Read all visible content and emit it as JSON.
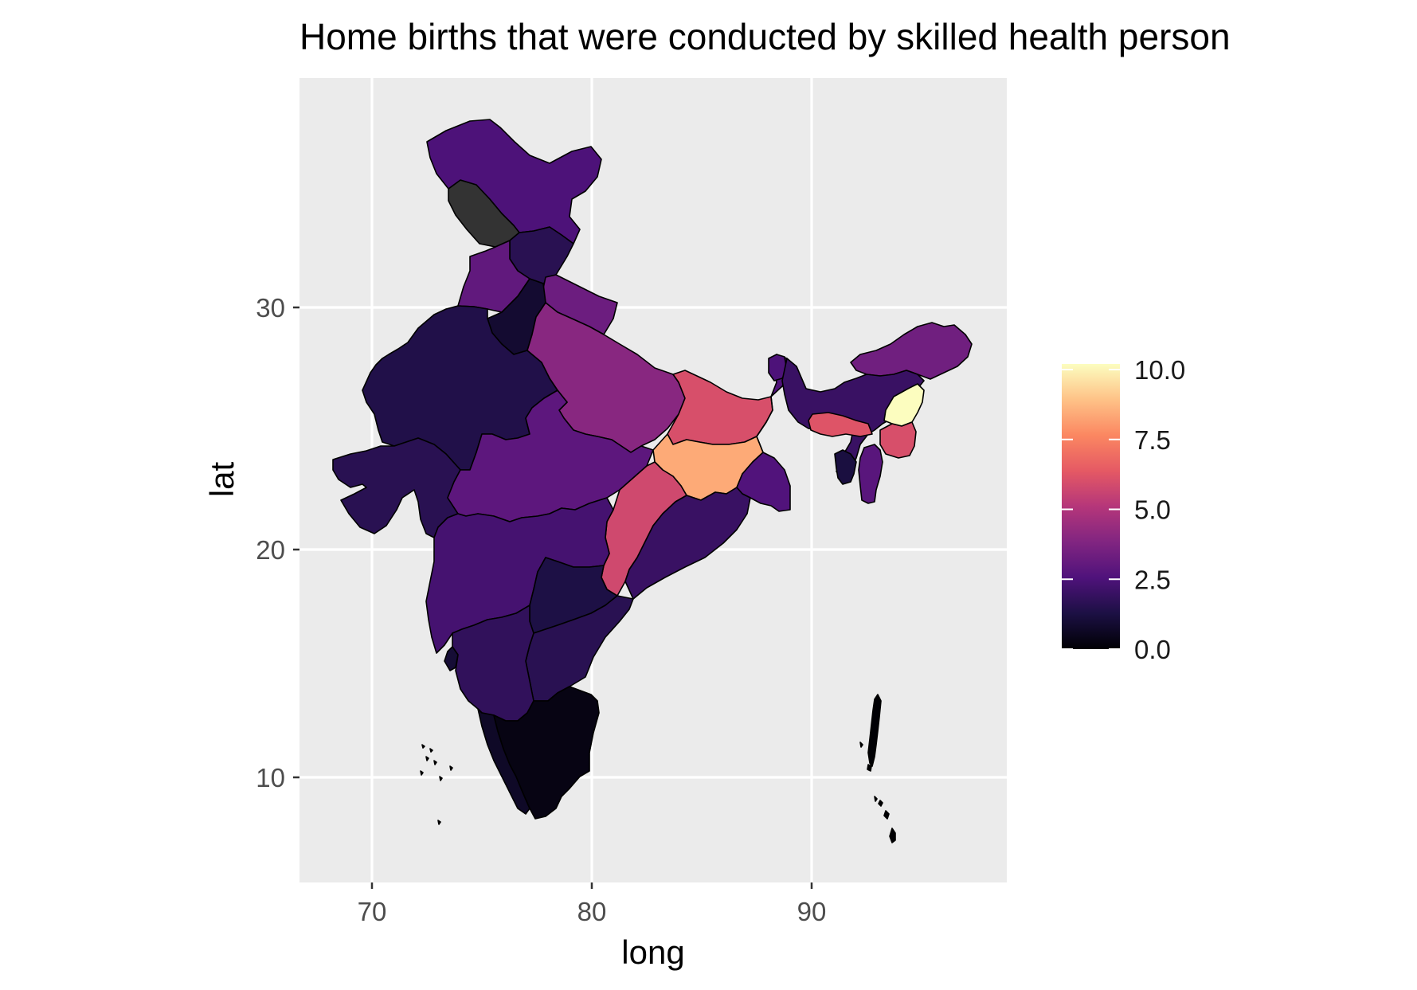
{
  "title": "Home births that were conducted by skilled health person",
  "chart_data": {
    "type": "choropleth",
    "title": "Home births that were conducted by skilled health person",
    "xlabel": "long",
    "ylabel": "lat",
    "x_ticks": [
      70,
      80,
      90
    ],
    "y_ticks": [
      10,
      20,
      30
    ],
    "xlim": [
      66.6,
      98.8
    ],
    "ylim": [
      5.8,
      39.7
    ],
    "grid": true,
    "legend": {
      "type": "colorbar",
      "position": "right",
      "ticks": [
        "10.0",
        "7.5",
        "5.0",
        "2.5",
        "0.0"
      ],
      "tick_values": [
        10,
        7.5,
        5,
        2.5,
        0
      ],
      "min": 0,
      "max": 10.2,
      "palette": [
        "#000004",
        "#1c1044",
        "#4f127b",
        "#812581",
        "#b5367a",
        "#e55964",
        "#fb8761",
        "#fec287",
        "#fcfdbf"
      ]
    },
    "regions_value_estimates": [
      {
        "id": "jammu-kashmir",
        "value": 2.5
      },
      {
        "id": "ladakh",
        "value": null
      },
      {
        "id": "himachal-pradesh",
        "value": 1.6
      },
      {
        "id": "punjab",
        "value": 3.0
      },
      {
        "id": "haryana",
        "value": 0.9
      },
      {
        "id": "uttarakhand",
        "value": 3.3
      },
      {
        "id": "rajasthan",
        "value": 1.4
      },
      {
        "id": "gujarat",
        "value": 1.6
      },
      {
        "id": "uttar-pradesh",
        "value": 4.0
      },
      {
        "id": "madhya-pradesh",
        "value": 2.9
      },
      {
        "id": "bihar",
        "value": 6.0
      },
      {
        "id": "jharkhand",
        "value": 8.4
      },
      {
        "id": "west-bengal",
        "value": 2.6
      },
      {
        "id": "chhattisgarh",
        "value": 5.8
      },
      {
        "id": "odisha",
        "value": 2.0
      },
      {
        "id": "maharashtra",
        "value": 2.3
      },
      {
        "id": "telangana",
        "value": 1.3
      },
      {
        "id": "andhra-pradesh",
        "value": 1.6
      },
      {
        "id": "karnataka",
        "value": 1.8
      },
      {
        "id": "goa",
        "value": 1.0
      },
      {
        "id": "kerala",
        "value": 0.7
      },
      {
        "id": "tamil-nadu",
        "value": 0.3
      },
      {
        "id": "sikkim",
        "value": 2.5
      },
      {
        "id": "arunachal-pradesh",
        "value": 3.4
      },
      {
        "id": "assam",
        "value": 2.0
      },
      {
        "id": "meghalaya",
        "value": 6.2
      },
      {
        "id": "nagaland",
        "value": 10.2
      },
      {
        "id": "manipur",
        "value": 6.0
      },
      {
        "id": "mizoram",
        "value": 2.8
      },
      {
        "id": "tripura",
        "value": 1.2
      },
      {
        "id": "andaman-nicobar",
        "value": 0.0
      },
      {
        "id": "lakshadweep",
        "value": 0.0
      }
    ]
  },
  "palette_colors": {
    "panel_background": "#ebebeb",
    "grid": "#ffffff",
    "na_fill": "#333333"
  }
}
